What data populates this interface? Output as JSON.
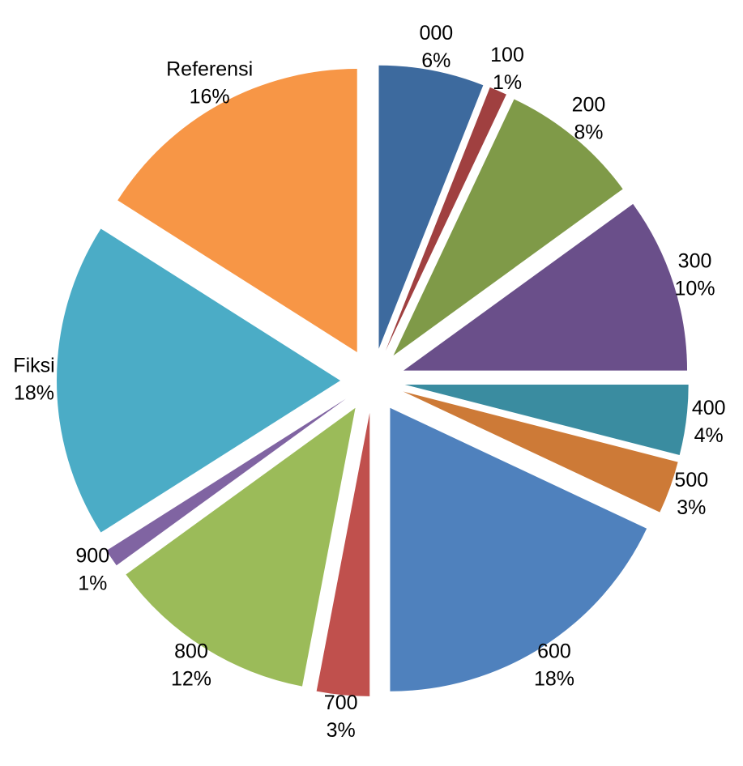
{
  "chart_data": {
    "type": "pie",
    "categories": [
      "000",
      "100",
      "200",
      "300",
      "400",
      "500",
      "600",
      "700",
      "800",
      "900",
      "Fiksi",
      "Referensi"
    ],
    "values": [
      6,
      1,
      8,
      10,
      4,
      3,
      18,
      3,
      12,
      1,
      18,
      16
    ],
    "value_labels": [
      "6%",
      "1%",
      "8%",
      "10%",
      "4%",
      "3%",
      "18%",
      "3%",
      "12%",
      "1%",
      "18%",
      "16%"
    ],
    "colors": [
      "#3d6a9e",
      "#a04040",
      "#7f9a48",
      "#6a4f8a",
      "#3a8ca0",
      "#cd7a37",
      "#4f81bd",
      "#c0504d",
      "#9bbb59",
      "#8064a2",
      "#4bacc6",
      "#f79646"
    ]
  }
}
